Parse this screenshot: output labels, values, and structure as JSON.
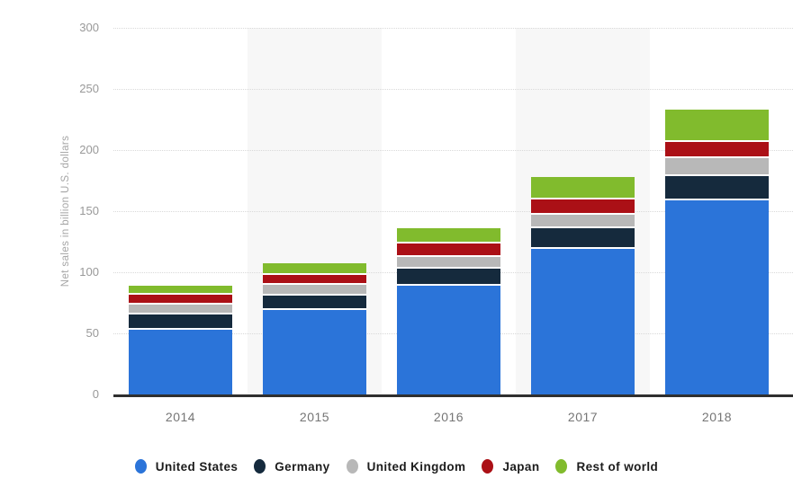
{
  "chart_data": {
    "type": "bar",
    "stacked": true,
    "categories": [
      "2014",
      "2015",
      "2016",
      "2017",
      "2018"
    ],
    "series": [
      {
        "name": "United States",
        "color": "#2b74d9",
        "values": [
          54.7,
          70.5,
          90.3,
          120.5,
          160.1
        ]
      },
      {
        "name": "Germany",
        "color": "#152a3d",
        "values": [
          11.9,
          11.8,
          14.1,
          17.0,
          19.9
        ]
      },
      {
        "name": "United Kingdom",
        "color": "#b8b8b8",
        "values": [
          8.3,
          9.0,
          9.5,
          11.4,
          14.5
        ]
      },
      {
        "name": "Japan",
        "color": "#ab1016",
        "values": [
          7.9,
          8.3,
          10.8,
          11.9,
          13.8
        ]
      },
      {
        "name": "Rest of world",
        "color": "#81bb2d",
        "values": [
          6.1,
          7.4,
          11.1,
          17.2,
          24.5
        ]
      }
    ],
    "totals": [
      88.9,
      107.0,
      135.8,
      177.9,
      232.8
    ],
    "ylabel": "Net sales in billion U.S. dollars",
    "xlabel": "",
    "ylim": [
      0,
      300
    ],
    "yticks": [
      0,
      50,
      100,
      150,
      200,
      250,
      300
    ],
    "grid": true,
    "grid_style": "dotted-horizontal",
    "legend_position": "bottom",
    "segment_separator_color": "#ffffff"
  },
  "styles": {
    "background": "#ffffff",
    "plot_band_color": "#f7f7f7",
    "grid_color": "#d9d9d9",
    "axis_line_color": "#2f2f2f",
    "tick_label_color": "#999999",
    "x_label_color": "#757575",
    "ylabel_color": "#a5a5a5",
    "legend_text_color": "#1c1c1c"
  }
}
